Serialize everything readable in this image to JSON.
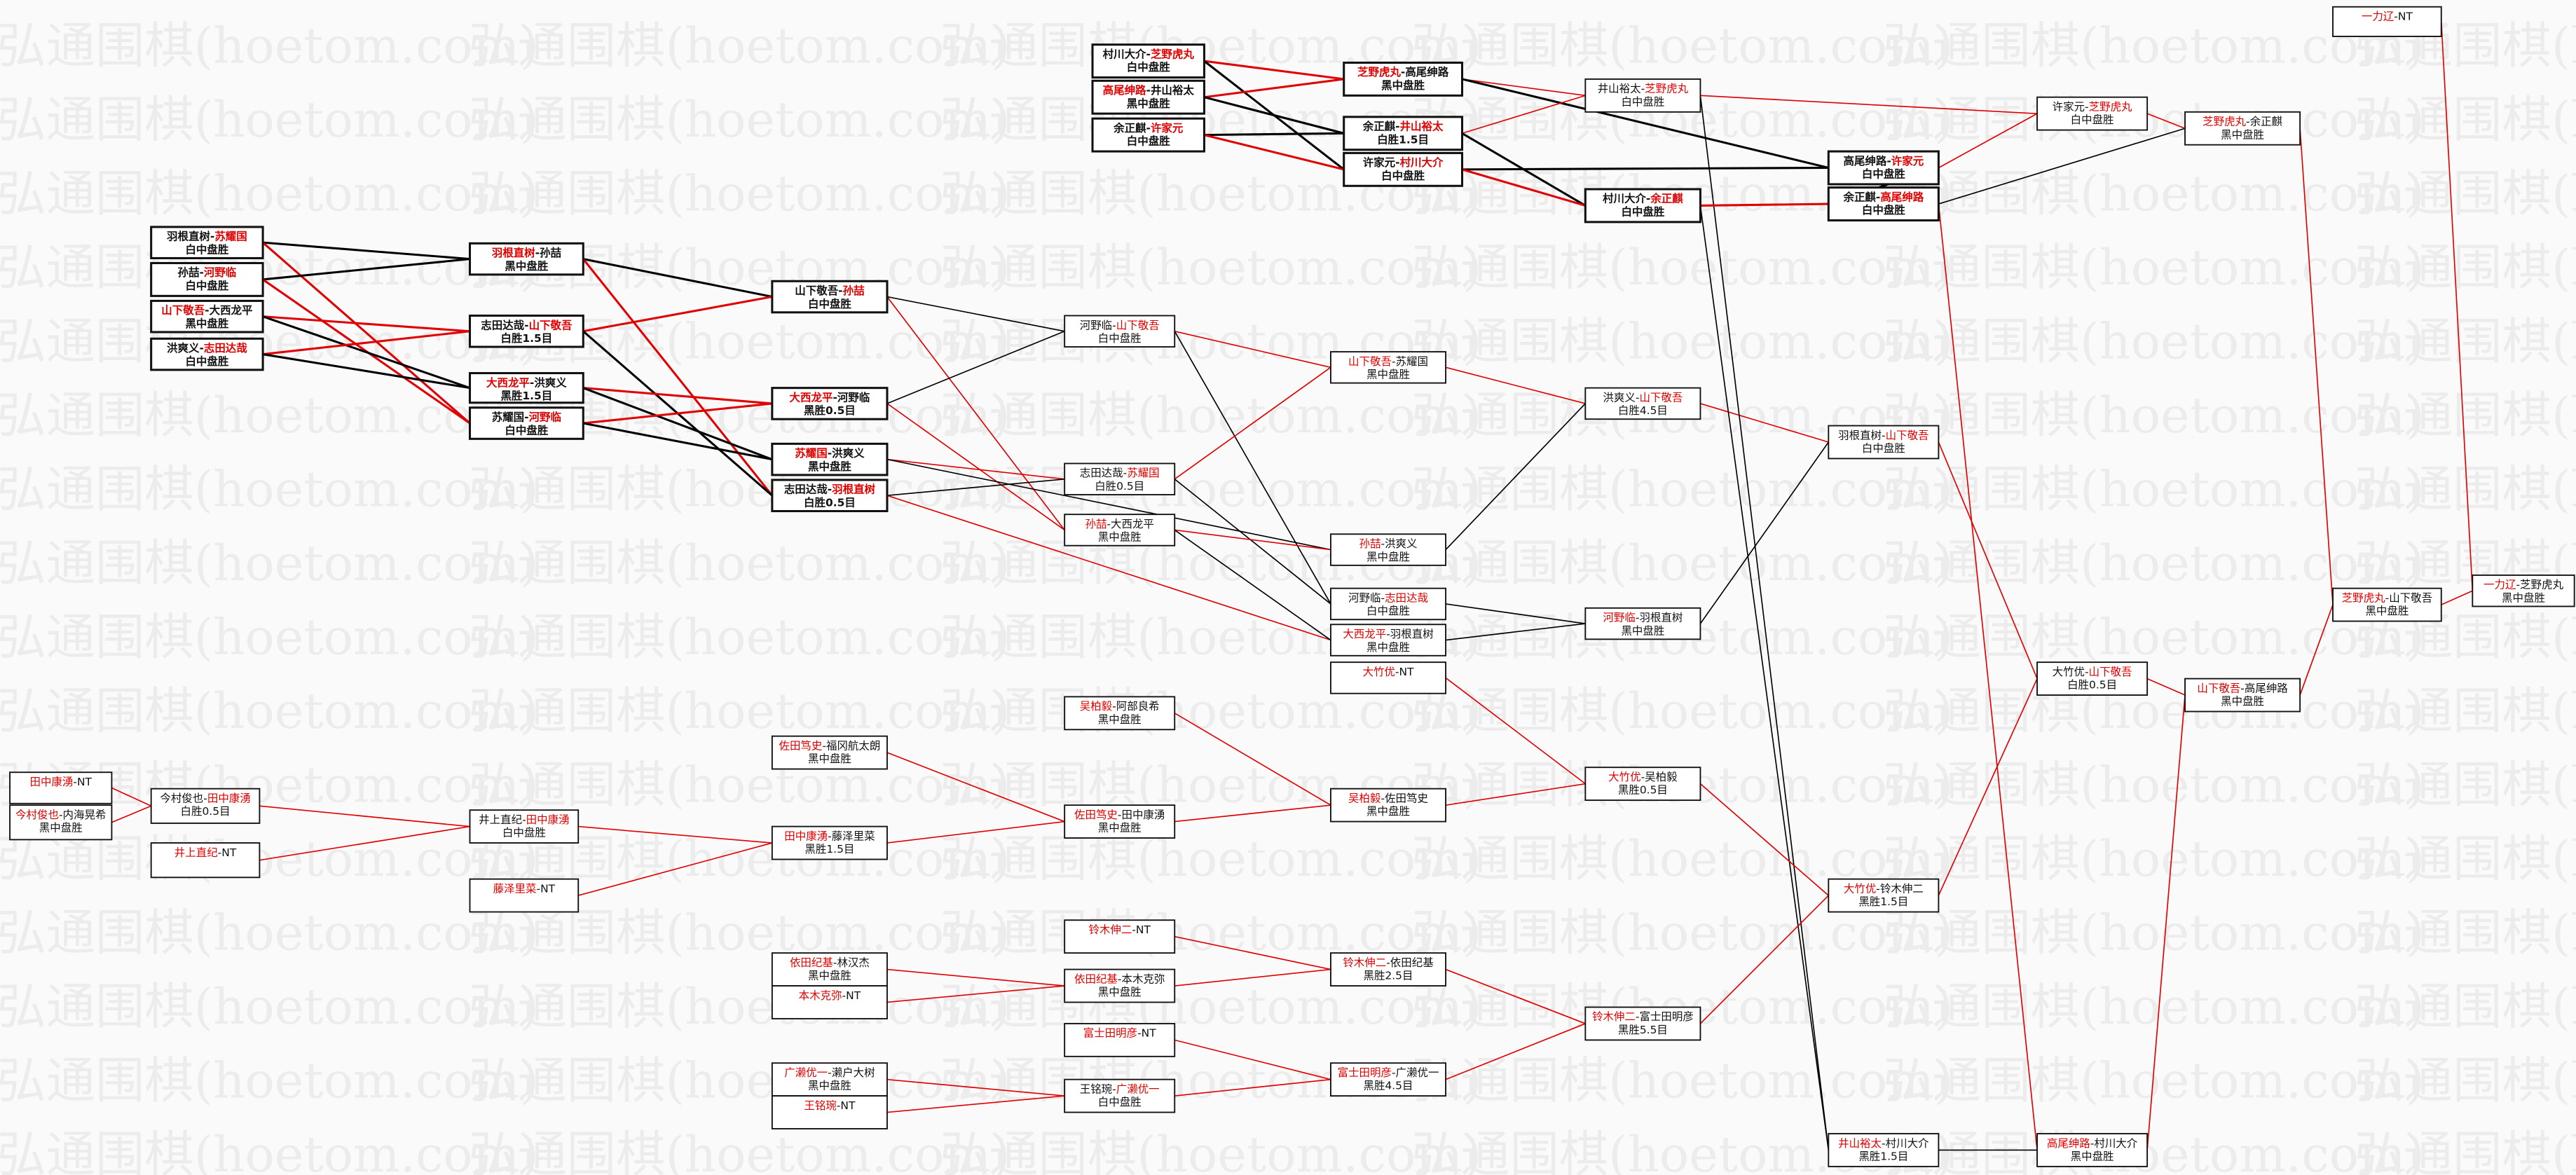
{
  "watermark": "弘通围棋(hoetom.com)",
  "colors": {
    "winner": "#e00000",
    "line_red": "#e00000",
    "line_black": "#000000",
    "background": "#fafafa"
  },
  "matches": [
    {
      "p1": "羽根直树",
      "p2": "苏耀国",
      "red": 2,
      "result": "白中盘胜"
    },
    {
      "p1": "孙喆",
      "p2": "河野临",
      "red": 2,
      "result": "白中盘胜"
    },
    {
      "p1": "山下敬吾",
      "p2": "大西龙平",
      "red": 1,
      "result": "黑中盘胜"
    },
    {
      "p1": "洪爽义",
      "p2": "志田达哉",
      "red": 2,
      "result": "白中盘胜"
    },
    {
      "p1": "羽根直树",
      "p2": "孙喆",
      "red": 1,
      "result": "黑中盘胜"
    },
    {
      "p1": "志田达哉",
      "p2": "山下敬吾",
      "red": 2,
      "result": "白胜1.5目"
    },
    {
      "p1": "大西龙平",
      "p2": "洪爽义",
      "red": 1,
      "result": "黑胜1.5目"
    },
    {
      "p1": "苏耀国",
      "p2": "河野临",
      "red": 2,
      "result": "白中盘胜"
    },
    {
      "p1": "山下敬吾",
      "p2": "孙喆",
      "red": 2,
      "result": "白中盘胜"
    },
    {
      "p1": "大西龙平",
      "p2": "河野临",
      "red": 1,
      "result": "黑胜0.5目"
    },
    {
      "p1": "苏耀国",
      "p2": "洪爽义",
      "red": 1,
      "result": "黑中盘胜"
    },
    {
      "p1": "志田达哉",
      "p2": "羽根直树",
      "red": 2,
      "result": "白胜0.5目"
    },
    {
      "p1": "河野临",
      "p2": "山下敬吾",
      "red": 2,
      "result": "白中盘胜"
    },
    {
      "p1": "志田达哉",
      "p2": "苏耀国",
      "red": 2,
      "result": "白胜0.5目"
    },
    {
      "p1": "孙喆",
      "p2": "大西龙平",
      "red": 1,
      "result": "黑中盘胜"
    },
    {
      "p1": "山下敬吾",
      "p2": "苏耀国",
      "red": 1,
      "result": "黑中盘胜"
    },
    {
      "p1": "孙喆",
      "p2": "洪爽义",
      "red": 1,
      "result": "黑中盘胜"
    },
    {
      "p1": "河野临",
      "p2": "志田达哉",
      "red": 2,
      "result": "白中盘胜"
    },
    {
      "p1": "大西龙平",
      "p2": "羽根直树",
      "red": 1,
      "result": "黑中盘胜"
    },
    {
      "p1": "大竹优",
      "p2": "NT",
      "red": 1,
      "result": ""
    },
    {
      "p1": "洪爽义",
      "p2": "山下敬吾",
      "red": 2,
      "result": "白胜4.5目"
    },
    {
      "p1": "河野临",
      "p2": "羽根直树",
      "red": 1,
      "result": "黑中盘胜"
    },
    {
      "p1": "村川大介",
      "p2": "芝野虎丸",
      "red": 2,
      "result": "白中盘胜"
    },
    {
      "p1": "高尾绅路",
      "p2": "井山裕太",
      "red": 1,
      "result": "黑中盘胜"
    },
    {
      "p1": "余正麒",
      "p2": "许家元",
      "red": 2,
      "result": "白中盘胜"
    },
    {
      "p1": "芝野虎丸",
      "p2": "高尾绅路",
      "red": 1,
      "result": "黑中盘胜"
    },
    {
      "p1": "余正麒",
      "p2": "井山裕太",
      "red": 2,
      "result": "白胜1.5目"
    },
    {
      "p1": "许家元",
      "p2": "村川大介",
      "red": 2,
      "result": "白中盘胜"
    },
    {
      "p1": "井山裕太",
      "p2": "芝野虎丸",
      "red": 2,
      "result": "白中盘胜"
    },
    {
      "p1": "村川大介",
      "p2": "余正麒",
      "red": 2,
      "result": "白中盘胜"
    },
    {
      "p1": "高尾绅路",
      "p2": "许家元",
      "red": 2,
      "result": "白中盘胜"
    },
    {
      "p1": "余正麒",
      "p2": "高尾绅路",
      "red": 2,
      "result": "白中盘胜"
    },
    {
      "p1": "羽根直树",
      "p2": "山下敬吾",
      "red": 2,
      "result": "白中盘胜"
    },
    {
      "p1": "大竹优",
      "p2": "铃木伸二",
      "red": 1,
      "result": "黑胜1.5目"
    },
    {
      "p1": "井山裕太",
      "p2": "村川大介",
      "red": 1,
      "result": "黑胜1.5目"
    },
    {
      "p1": "许家元",
      "p2": "芝野虎丸",
      "red": 2,
      "result": "白中盘胜"
    },
    {
      "p1": "大竹优",
      "p2": "山下敬吾",
      "red": 2,
      "result": "白胜0.5目"
    },
    {
      "p1": "高尾绅路",
      "p2": "村川大介",
      "red": 1,
      "result": "黑中盘胜"
    },
    {
      "p1": "芝野虎丸",
      "p2": "余正麒",
      "red": 1,
      "result": "黑中盘胜"
    },
    {
      "p1": "山下敬吾",
      "p2": "高尾绅路",
      "red": 1,
      "result": "黑中盘胜"
    },
    {
      "p1": "芝野虎丸",
      "p2": "山下敬吾",
      "red": 1,
      "result": "黑中盘胜"
    },
    {
      "p1": "一力辽",
      "p2": "NT",
      "red": 1,
      "result": ""
    },
    {
      "p1": "一力辽",
      "p2": "芝野虎丸",
      "red": 1,
      "result": "黑中盘胜"
    },
    {
      "p1": "田中康湧",
      "p2": "NT",
      "red": 1,
      "result": ""
    },
    {
      "p1": "今村俊也",
      "p2": "内海晃希",
      "red": 1,
      "result": "黑中盘胜"
    },
    {
      "p1": "今村俊也",
      "p2": "田中康湧",
      "red": 2,
      "result": "白胜0.5目"
    },
    {
      "p1": "井上直纪",
      "p2": "NT",
      "red": 1,
      "result": ""
    },
    {
      "p1": "井上直纪",
      "p2": "田中康湧",
      "red": 2,
      "result": "白中盘胜"
    },
    {
      "p1": "藤泽里菜",
      "p2": "NT",
      "red": 1,
      "result": ""
    },
    {
      "p1": "佐田笃史",
      "p2": "福冈航太朗",
      "red": 1,
      "result": "黑中盘胜"
    },
    {
      "p1": "田中康湧",
      "p2": "藤泽里菜",
      "red": 1,
      "result": "黑胜1.5目"
    },
    {
      "p1": "吴柏毅",
      "p2": "阿部良希",
      "red": 1,
      "result": "黑中盘胜"
    },
    {
      "p1": "佐田笃史",
      "p2": "田中康湧",
      "red": 1,
      "result": "黑中盘胜"
    },
    {
      "p1": "吴柏毅",
      "p2": "佐田笃史",
      "red": 1,
      "result": "黑中盘胜"
    },
    {
      "p1": "大竹优",
      "p2": "吴柏毅",
      "red": 1,
      "result": "黑胜0.5目"
    },
    {
      "p1": "铃木伸二",
      "p2": "NT",
      "red": 1,
      "result": ""
    },
    {
      "p1": "依田纪基",
      "p2": "林汉杰",
      "red": 1,
      "result": "黑中盘胜"
    },
    {
      "p1": "本木克弥",
      "p2": "NT",
      "red": 1,
      "result": ""
    },
    {
      "p1": "依田纪基",
      "p2": "本木克弥",
      "red": 1,
      "result": "黑中盘胜"
    },
    {
      "p1": "铃木伸二",
      "p2": "依田纪基",
      "red": 1,
      "result": "黑胜2.5目"
    },
    {
      "p1": "富士田明彦",
      "p2": "NT",
      "red": 1,
      "result": ""
    },
    {
      "p1": "广濑优一",
      "p2": "濑户大树",
      "red": 1,
      "result": "黑中盘胜"
    },
    {
      "p1": "王铭琬",
      "p2": "NT",
      "red": 1,
      "result": ""
    },
    {
      "p1": "王铭琬",
      "p2": "广濑优一",
      "red": 2,
      "result": "白中盘胜"
    },
    {
      "p1": "富士田明彦",
      "p2": "广濑优一",
      "red": 1,
      "result": "黑胜4.5目"
    },
    {
      "p1": "铃木伸二",
      "p2": "富士田明彦",
      "red": 1,
      "result": "黑胜5.5目"
    }
  ]
}
